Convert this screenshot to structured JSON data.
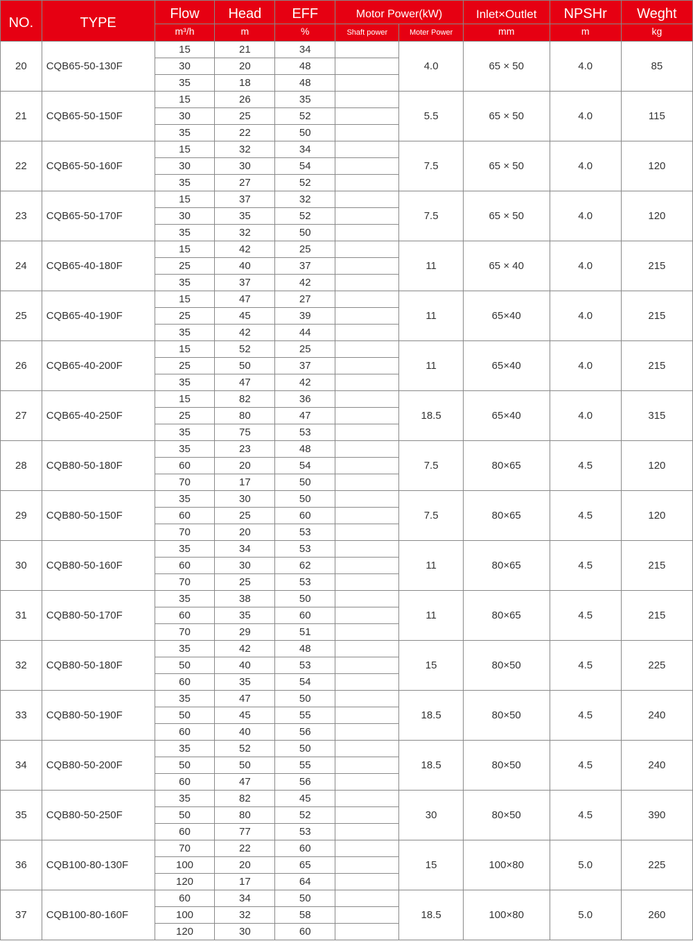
{
  "header": {
    "no": {
      "main": "NO."
    },
    "type": {
      "main": "TYPE"
    },
    "flow": {
      "main": "Flow",
      "unit": "m³/h"
    },
    "head": {
      "main": "Head",
      "unit": "m"
    },
    "eff": {
      "main": "EFF",
      "unit": "%"
    },
    "motor": {
      "main": "Motor Power(kW)",
      "shaft": "Shaft power",
      "power": "Moter Power"
    },
    "inlet": {
      "main": "Inlet×Outlet",
      "unit": "mm"
    },
    "npshr": {
      "main": "NPSHr",
      "unit": "m"
    },
    "weight": {
      "main": "Weght",
      "unit": "kg"
    }
  },
  "rows": [
    {
      "no": "20",
      "type": "CQB65-50-130F",
      "sub": [
        [
          "15",
          "21",
          "34",
          ""
        ],
        [
          "30",
          "20",
          "48",
          ""
        ],
        [
          "35",
          "18",
          "48",
          ""
        ]
      ],
      "motor": "4.0",
      "inlet": "65 × 50",
      "npshr": "4.0",
      "weight": "85"
    },
    {
      "no": "21",
      "type": "CQB65-50-150F",
      "sub": [
        [
          "15",
          "26",
          "35",
          ""
        ],
        [
          "30",
          "25",
          "52",
          ""
        ],
        [
          "35",
          "22",
          "50",
          ""
        ]
      ],
      "motor": "5.5",
      "inlet": "65 × 50",
      "npshr": "4.0",
      "weight": "115"
    },
    {
      "no": "22",
      "type": "CQB65-50-160F",
      "sub": [
        [
          "15",
          "32",
          "34",
          ""
        ],
        [
          "30",
          "30",
          "54",
          ""
        ],
        [
          "35",
          "27",
          "52",
          ""
        ]
      ],
      "motor": "7.5",
      "inlet": "65 × 50",
      "npshr": "4.0",
      "weight": "120"
    },
    {
      "no": "23",
      "type": "CQB65-50-170F",
      "sub": [
        [
          "15",
          "37",
          "32",
          ""
        ],
        [
          "30",
          "35",
          "52",
          ""
        ],
        [
          "35",
          "32",
          "50",
          ""
        ]
      ],
      "motor": "7.5",
      "inlet": "65 × 50",
      "npshr": "4.0",
      "weight": "120"
    },
    {
      "no": "24",
      "type": "CQB65-40-180F",
      "sub": [
        [
          "15",
          "42",
          "25",
          ""
        ],
        [
          "25",
          "40",
          "37",
          ""
        ],
        [
          "35",
          "37",
          "42",
          ""
        ]
      ],
      "motor": "11",
      "inlet": "65 × 40",
      "npshr": "4.0",
      "weight": "215"
    },
    {
      "no": "25",
      "type": "CQB65-40-190F",
      "sub": [
        [
          "15",
          "47",
          "27",
          ""
        ],
        [
          "25",
          "45",
          "39",
          ""
        ],
        [
          "35",
          "42",
          "44",
          ""
        ]
      ],
      "motor": "11",
      "inlet": "65×40",
      "npshr": "4.0",
      "weight": "215"
    },
    {
      "no": "26",
      "type": "CQB65-40-200F",
      "sub": [
        [
          "15",
          "52",
          "25",
          ""
        ],
        [
          "25",
          "50",
          "37",
          ""
        ],
        [
          "35",
          "47",
          "42",
          ""
        ]
      ],
      "motor": "11",
      "inlet": "65×40",
      "npshr": "4.0",
      "weight": "215"
    },
    {
      "no": "27",
      "type": "CQB65-40-250F",
      "sub": [
        [
          "15",
          "82",
          "36",
          ""
        ],
        [
          "25",
          "80",
          "47",
          ""
        ],
        [
          "35",
          "75",
          "53",
          ""
        ]
      ],
      "motor": "18.5",
      "inlet": "65×40",
      "npshr": "4.0",
      "weight": "315"
    },
    {
      "no": "28",
      "type": "CQB80-50-180F",
      "sub": [
        [
          "35",
          "23",
          "48",
          ""
        ],
        [
          "60",
          "20",
          "54",
          ""
        ],
        [
          "70",
          "17",
          "50",
          ""
        ]
      ],
      "motor": "7.5",
      "inlet": "80×65",
      "npshr": "4.5",
      "weight": "120"
    },
    {
      "no": "29",
      "type": "CQB80-50-150F",
      "sub": [
        [
          "35",
          "30",
          "50",
          ""
        ],
        [
          "60",
          "25",
          "60",
          ""
        ],
        [
          "70",
          "20",
          "53",
          ""
        ]
      ],
      "motor": "7.5",
      "inlet": "80×65",
      "npshr": "4.5",
      "weight": "120"
    },
    {
      "no": "30",
      "type": "CQB80-50-160F",
      "sub": [
        [
          "35",
          "34",
          "53",
          ""
        ],
        [
          "60",
          "30",
          "62",
          ""
        ],
        [
          "70",
          "25",
          "53",
          ""
        ]
      ],
      "motor": "11",
      "inlet": "80×65",
      "npshr": "4.5",
      "weight": "215"
    },
    {
      "no": "31",
      "type": "CQB80-50-170F",
      "sub": [
        [
          "35",
          "38",
          "50",
          ""
        ],
        [
          "60",
          "35",
          "60",
          ""
        ],
        [
          "70",
          "29",
          "51",
          ""
        ]
      ],
      "motor": "11",
      "inlet": "80×65",
      "npshr": "4.5",
      "weight": "215"
    },
    {
      "no": "32",
      "type": "CQB80-50-180F",
      "sub": [
        [
          "35",
          "42",
          "48",
          ""
        ],
        [
          "50",
          "40",
          "53",
          ""
        ],
        [
          "60",
          "35",
          "54",
          ""
        ]
      ],
      "motor": "15",
      "inlet": "80×50",
      "npshr": "4.5",
      "weight": "225"
    },
    {
      "no": "33",
      "type": "CQB80-50-190F",
      "sub": [
        [
          "35",
          "47",
          "50",
          ""
        ],
        [
          "50",
          "45",
          "55",
          ""
        ],
        [
          "60",
          "40",
          "56",
          ""
        ]
      ],
      "motor": "18.5",
      "inlet": "80×50",
      "npshr": "4.5",
      "weight": "240"
    },
    {
      "no": "34",
      "type": "CQB80-50-200F",
      "sub": [
        [
          "35",
          "52",
          "50",
          ""
        ],
        [
          "50",
          "50",
          "55",
          ""
        ],
        [
          "60",
          "47",
          "56",
          ""
        ]
      ],
      "motor": "18.5",
      "inlet": "80×50",
      "npshr": "4.5",
      "weight": "240"
    },
    {
      "no": "35",
      "type": "CQB80-50-250F",
      "sub": [
        [
          "35",
          "82",
          "45",
          ""
        ],
        [
          "50",
          "80",
          "52",
          ""
        ],
        [
          "60",
          "77",
          "53",
          ""
        ]
      ],
      "motor": "30",
      "inlet": "80×50",
      "npshr": "4.5",
      "weight": "390"
    },
    {
      "no": "36",
      "type": "CQB100-80-130F",
      "sub": [
        [
          "70",
          "22",
          "60",
          ""
        ],
        [
          "100",
          "20",
          "65",
          ""
        ],
        [
          "120",
          "17",
          "64",
          ""
        ]
      ],
      "motor": "15",
      "inlet": "100×80",
      "npshr": "5.0",
      "weight": "225"
    },
    {
      "no": "37",
      "type": "CQB100-80-160F",
      "sub": [
        [
          "60",
          "34",
          "50",
          ""
        ],
        [
          "100",
          "32",
          "58",
          ""
        ],
        [
          "120",
          "30",
          "60",
          ""
        ]
      ],
      "motor": "18.5",
      "inlet": "100×80",
      "npshr": "5.0",
      "weight": "260"
    }
  ]
}
